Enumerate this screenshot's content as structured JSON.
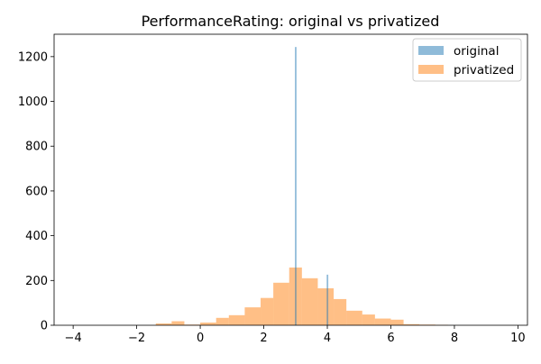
{
  "chart_data": {
    "type": "bar",
    "title": "PerformanceRating: original vs privatized",
    "xlabel": "",
    "ylabel": "",
    "xlim": [
      -4.6,
      10.3
    ],
    "ylim": [
      0,
      1300
    ],
    "x_ticks": [
      "−4",
      "−2",
      "0",
      "2",
      "4",
      "6",
      "8",
      "10"
    ],
    "x_tick_values": [
      -4,
      -2,
      0,
      2,
      4,
      6,
      8,
      10
    ],
    "y_ticks": [
      "0",
      "200",
      "400",
      "600",
      "800",
      "1000",
      "1200"
    ],
    "y_tick_values": [
      0,
      200,
      400,
      600,
      800,
      1000,
      1200
    ],
    "grid": false,
    "legend_position": "top-right",
    "series": [
      {
        "name": "original",
        "color": "#1f77b4",
        "alpha": 0.5,
        "bins": [
          {
            "x0": 2.98,
            "x1": 3.03,
            "value": 1243
          },
          {
            "x0": 3.98,
            "x1": 4.03,
            "value": 226
          }
        ]
      },
      {
        "name": "privatized",
        "color": "#ff7f0e",
        "alpha": 0.5,
        "bins": [
          {
            "x0": -1.4,
            "x1": -0.9,
            "value": 8
          },
          {
            "x0": -0.9,
            "x1": -0.5,
            "value": 18
          },
          {
            "x0": -0.5,
            "x1": 0.0,
            "value": 3
          },
          {
            "x0": 0.0,
            "x1": 0.5,
            "value": 12
          },
          {
            "x0": 0.5,
            "x1": 0.9,
            "value": 33
          },
          {
            "x0": 0.9,
            "x1": 1.4,
            "value": 45
          },
          {
            "x0": 1.4,
            "x1": 1.9,
            "value": 80
          },
          {
            "x0": 1.9,
            "x1": 2.3,
            "value": 122
          },
          {
            "x0": 2.3,
            "x1": 2.8,
            "value": 190
          },
          {
            "x0": 2.8,
            "x1": 3.2,
            "value": 258
          },
          {
            "x0": 3.2,
            "x1": 3.7,
            "value": 210
          },
          {
            "x0": 3.7,
            "x1": 4.2,
            "value": 165
          },
          {
            "x0": 4.2,
            "x1": 4.6,
            "value": 117
          },
          {
            "x0": 4.6,
            "x1": 5.1,
            "value": 65
          },
          {
            "x0": 5.1,
            "x1": 5.5,
            "value": 48
          },
          {
            "x0": 5.5,
            "x1": 6.0,
            "value": 30
          },
          {
            "x0": 6.0,
            "x1": 6.4,
            "value": 25
          },
          {
            "x0": 6.4,
            "x1": 6.9,
            "value": 5
          },
          {
            "x0": 6.9,
            "x1": 7.4,
            "value": 3
          },
          {
            "x0": 7.4,
            "x1": 7.8,
            "value": 2
          }
        ]
      }
    ]
  }
}
